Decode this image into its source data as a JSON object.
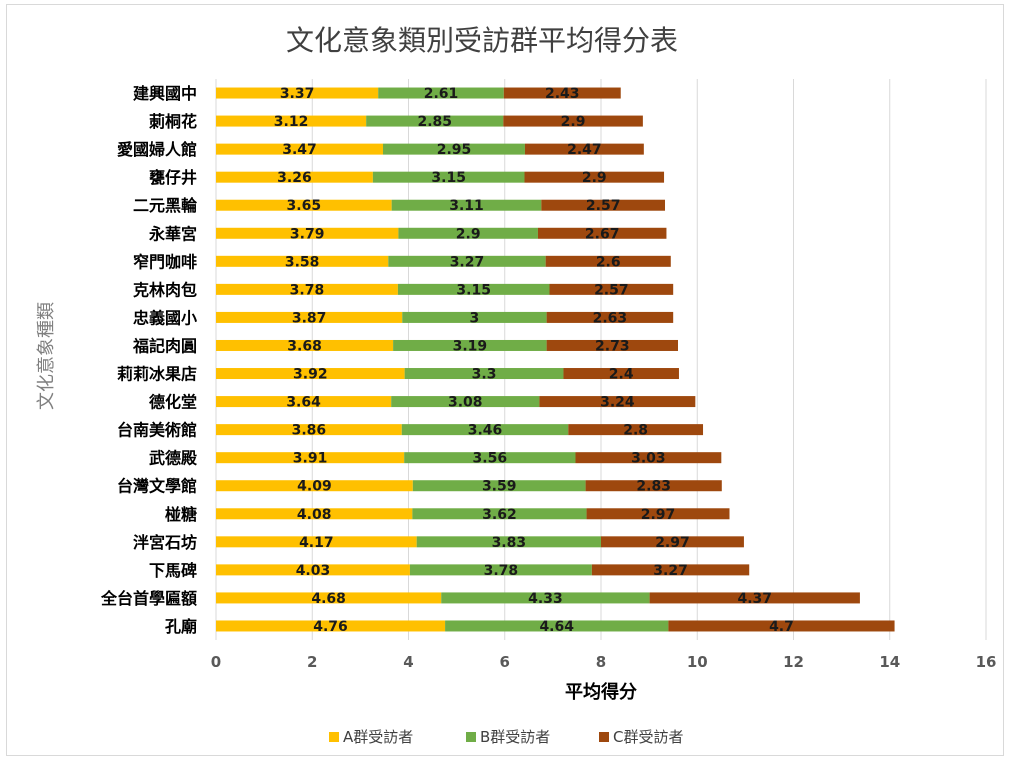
{
  "chart_data": {
    "type": "bar",
    "orientation": "horizontal",
    "stacked": true,
    "title": "文化意象類別受訪群平均得分表",
    "xlabel": "平均得分",
    "ylabel": "文化意象種類",
    "xlim": [
      0,
      16
    ],
    "xticks": [
      0,
      2,
      4,
      6,
      8,
      10,
      12,
      14,
      16
    ],
    "grid": true,
    "legend_position": "bottom",
    "categories": [
      "建興國中",
      "莿桐花",
      "愛國婦人館",
      "甕仔井",
      "二元黑輪",
      "永華宮",
      "窄門咖啡",
      "克林肉包",
      "忠義國小",
      "福記肉圓",
      "莉莉冰果店",
      "德化堂",
      "台南美術館",
      "武德殿",
      "台灣文學館",
      "椪糖",
      "泮宮石坊",
      "下馬碑",
      "全台首學匾額",
      "孔廟"
    ],
    "series": [
      {
        "name": "A群受訪者",
        "color": "#FFC000",
        "values": [
          3.37,
          3.12,
          3.47,
          3.26,
          3.65,
          3.79,
          3.58,
          3.78,
          3.87,
          3.68,
          3.92,
          3.64,
          3.86,
          3.91,
          4.09,
          4.08,
          4.17,
          4.03,
          4.68,
          4.76
        ]
      },
      {
        "name": "B群受訪者",
        "color": "#70AD47",
        "values": [
          2.61,
          2.85,
          2.95,
          3.15,
          3.11,
          2.9,
          3.27,
          3.15,
          3,
          3.19,
          3.3,
          3.08,
          3.46,
          3.56,
          3.59,
          3.62,
          3.83,
          3.78,
          4.33,
          4.64
        ]
      },
      {
        "name": "C群受訪者",
        "color": "#9E480E",
        "values": [
          2.43,
          2.9,
          2.47,
          2.9,
          2.57,
          2.67,
          2.6,
          2.57,
          2.63,
          2.73,
          2.4,
          3.24,
          2.8,
          3.03,
          2.83,
          2.97,
          2.97,
          3.27,
          4.37,
          4.7
        ]
      }
    ]
  }
}
